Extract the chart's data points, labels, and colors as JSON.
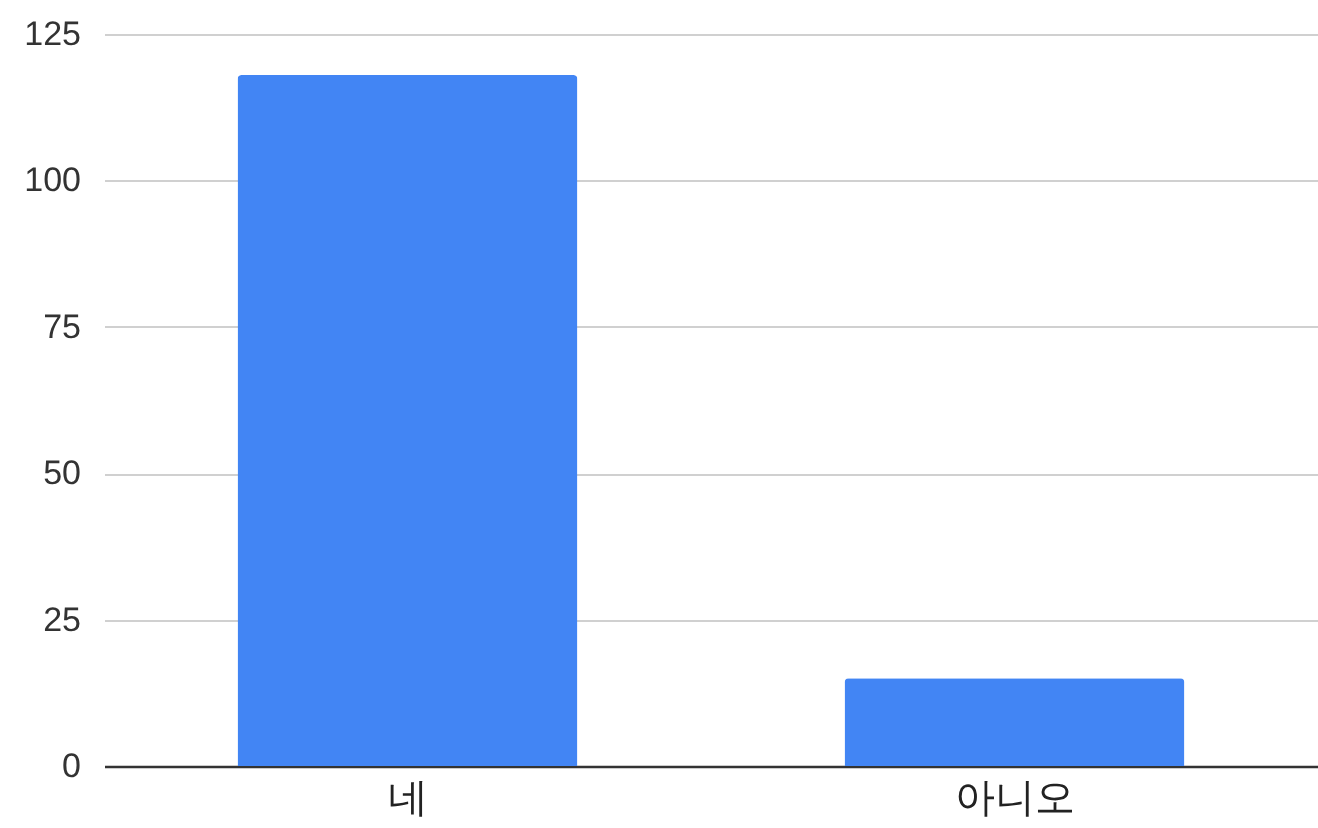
{
  "chart_data": {
    "type": "bar",
    "categories": [
      "네",
      "아니오"
    ],
    "values": [
      118,
      15
    ],
    "color": "#4285f4",
    "ylim": [
      0,
      125
    ],
    "yticks": [
      0,
      25,
      50,
      75,
      100,
      125
    ],
    "grid": "y"
  }
}
